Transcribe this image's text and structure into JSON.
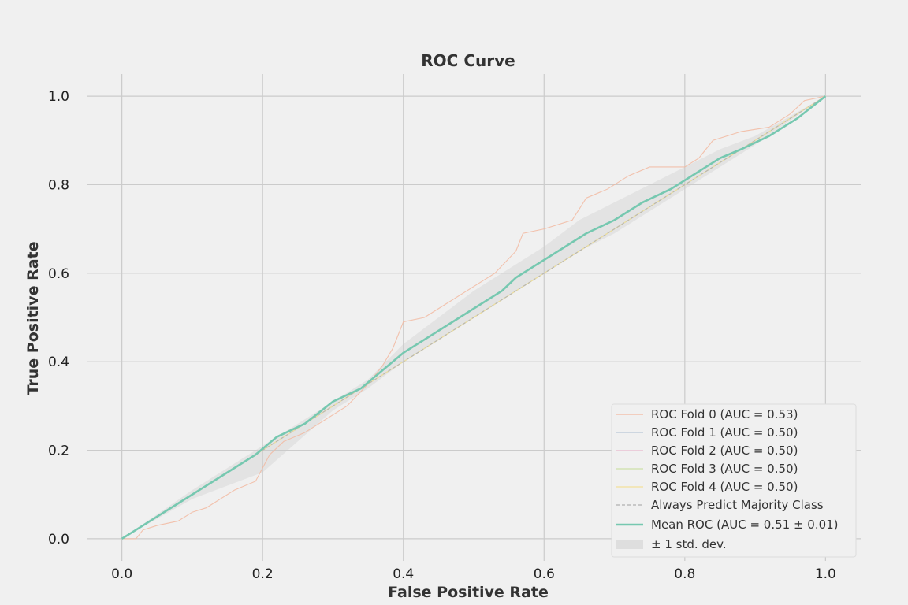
{
  "chart_data": {
    "type": "line",
    "title": "ROC Curve",
    "xlabel": "False Positive Rate",
    "ylabel": "True Positive Rate",
    "xlim": [
      -0.05,
      1.05
    ],
    "ylim": [
      -0.05,
      1.05
    ],
    "xticks": [
      "0.0",
      "0.2",
      "0.4",
      "0.6",
      "0.8",
      "1.0"
    ],
    "yticks": [
      "0.0",
      "0.2",
      "0.4",
      "0.6",
      "0.8",
      "1.0"
    ],
    "grid": true,
    "legend_position": "lower-right",
    "series": [
      {
        "name": "ROC Fold 0 (AUC = 0.53)",
        "color": "#f2b8a0",
        "x": [
          0.0,
          0.02,
          0.03,
          0.05,
          0.08,
          0.1,
          0.12,
          0.14,
          0.16,
          0.19,
          0.21,
          0.23,
          0.26,
          0.29,
          0.32,
          0.35,
          0.37,
          0.385,
          0.4,
          0.43,
          0.46,
          0.5,
          0.53,
          0.56,
          0.57,
          0.6,
          0.64,
          0.66,
          0.69,
          0.72,
          0.75,
          0.8,
          0.82,
          0.84,
          0.88,
          0.92,
          0.95,
          0.97,
          1.0
        ],
        "y": [
          0.0,
          0.0,
          0.02,
          0.03,
          0.04,
          0.06,
          0.07,
          0.09,
          0.11,
          0.13,
          0.19,
          0.22,
          0.24,
          0.27,
          0.3,
          0.35,
          0.39,
          0.43,
          0.49,
          0.5,
          0.53,
          0.57,
          0.6,
          0.65,
          0.69,
          0.7,
          0.72,
          0.77,
          0.79,
          0.82,
          0.84,
          0.84,
          0.86,
          0.9,
          0.92,
          0.93,
          0.96,
          0.99,
          1.0
        ]
      },
      {
        "name": "ROC Fold 1 (AUC = 0.50)",
        "color": "#b8c6d6",
        "x": [
          0.0,
          0.1,
          0.2,
          0.3,
          0.4,
          0.5,
          0.6,
          0.7,
          0.8,
          0.9,
          1.0
        ],
        "y": [
          0.0,
          0.1,
          0.2,
          0.3,
          0.4,
          0.5,
          0.6,
          0.7,
          0.8,
          0.9,
          1.0
        ]
      },
      {
        "name": "ROC Fold 2 (AUC = 0.50)",
        "color": "#e8b8cc",
        "x": [
          0.0,
          0.1,
          0.2,
          0.3,
          0.4,
          0.5,
          0.6,
          0.7,
          0.8,
          0.9,
          1.0
        ],
        "y": [
          0.0,
          0.1,
          0.2,
          0.3,
          0.4,
          0.5,
          0.6,
          0.7,
          0.8,
          0.9,
          1.0
        ]
      },
      {
        "name": "ROC Fold 3 (AUC = 0.50)",
        "color": "#cce0a8",
        "x": [
          0.0,
          0.1,
          0.2,
          0.3,
          0.4,
          0.5,
          0.6,
          0.7,
          0.8,
          0.9,
          1.0
        ],
        "y": [
          0.0,
          0.1,
          0.2,
          0.3,
          0.4,
          0.5,
          0.6,
          0.7,
          0.8,
          0.9,
          1.0
        ]
      },
      {
        "name": "ROC Fold 4 (AUC = 0.50)",
        "color": "#f4e09a",
        "x": [
          0.0,
          0.1,
          0.2,
          0.3,
          0.4,
          0.5,
          0.6,
          0.7,
          0.8,
          0.9,
          1.0
        ],
        "y": [
          0.0,
          0.1,
          0.2,
          0.3,
          0.4,
          0.5,
          0.6,
          0.7,
          0.8,
          0.9,
          1.0
        ]
      },
      {
        "name": "Always Predict Majority Class",
        "color": "#b0b0b0",
        "dashed": true,
        "x": [
          0.0,
          1.0
        ],
        "y": [
          0.0,
          1.0
        ]
      },
      {
        "name": "Mean ROC (AUC = 0.51 ± 0.01)",
        "color": "#76c8b0",
        "x": [
          0.0,
          0.02,
          0.05,
          0.08,
          0.1,
          0.13,
          0.16,
          0.19,
          0.22,
          0.26,
          0.3,
          0.34,
          0.37,
          0.4,
          0.42,
          0.45,
          0.48,
          0.51,
          0.54,
          0.56,
          0.58,
          0.6,
          0.63,
          0.66,
          0.7,
          0.74,
          0.78,
          0.82,
          0.85,
          0.88,
          0.92,
          0.96,
          1.0
        ],
        "y": [
          0.0,
          0.02,
          0.05,
          0.08,
          0.1,
          0.13,
          0.16,
          0.19,
          0.23,
          0.26,
          0.31,
          0.34,
          0.38,
          0.42,
          0.44,
          0.47,
          0.5,
          0.53,
          0.56,
          0.59,
          0.61,
          0.63,
          0.66,
          0.69,
          0.72,
          0.76,
          0.79,
          0.83,
          0.86,
          0.88,
          0.91,
          0.95,
          1.0
        ]
      }
    ],
    "band": {
      "name": "± 1 std. dev.",
      "color": "#cccccc",
      "x": [
        0.0,
        0.1,
        0.2,
        0.3,
        0.35,
        0.4,
        0.5,
        0.6,
        0.65,
        0.7,
        0.8,
        0.85,
        0.9,
        1.0
      ],
      "upper": [
        0.0,
        0.11,
        0.21,
        0.31,
        0.36,
        0.44,
        0.56,
        0.66,
        0.72,
        0.76,
        0.84,
        0.88,
        0.91,
        1.0
      ],
      "lower": [
        0.0,
        0.09,
        0.15,
        0.29,
        0.34,
        0.4,
        0.5,
        0.6,
        0.65,
        0.69,
        0.79,
        0.84,
        0.89,
        1.0
      ]
    }
  }
}
